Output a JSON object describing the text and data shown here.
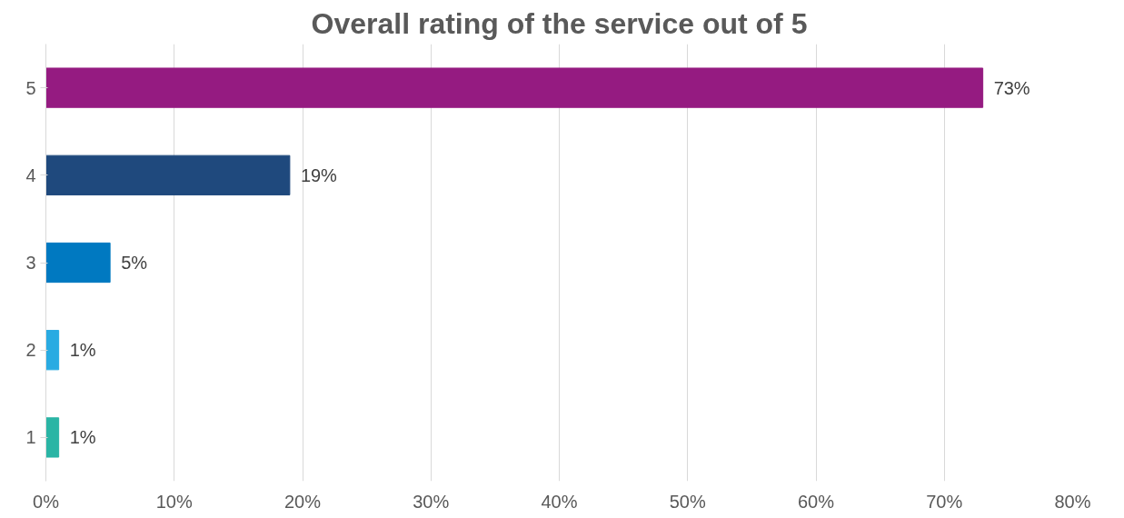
{
  "chart_data": {
    "type": "bar",
    "orientation": "horizontal",
    "title": "Overall rating of the service out of 5",
    "categories": [
      "5",
      "4",
      "3",
      "2",
      "1"
    ],
    "values": [
      73,
      19,
      5,
      1,
      1
    ],
    "colors": [
      "#951b81",
      "#1f497d",
      "#0079c1",
      "#29abe2",
      "#2ab5a5"
    ],
    "value_labels": [
      "73%",
      "19%",
      "5%",
      "1%",
      "1%"
    ],
    "xlim": [
      0,
      80
    ],
    "xticks": [
      {
        "value": 0,
        "label": "0%"
      },
      {
        "value": 10,
        "label": "10%"
      },
      {
        "value": 20,
        "label": "20%"
      },
      {
        "value": 30,
        "label": "30%"
      },
      {
        "value": 40,
        "label": "40%"
      },
      {
        "value": 50,
        "label": "50%"
      },
      {
        "value": 60,
        "label": "60%"
      },
      {
        "value": 70,
        "label": "70%"
      },
      {
        "value": 80,
        "label": "80%"
      }
    ],
    "grid": "x"
  }
}
